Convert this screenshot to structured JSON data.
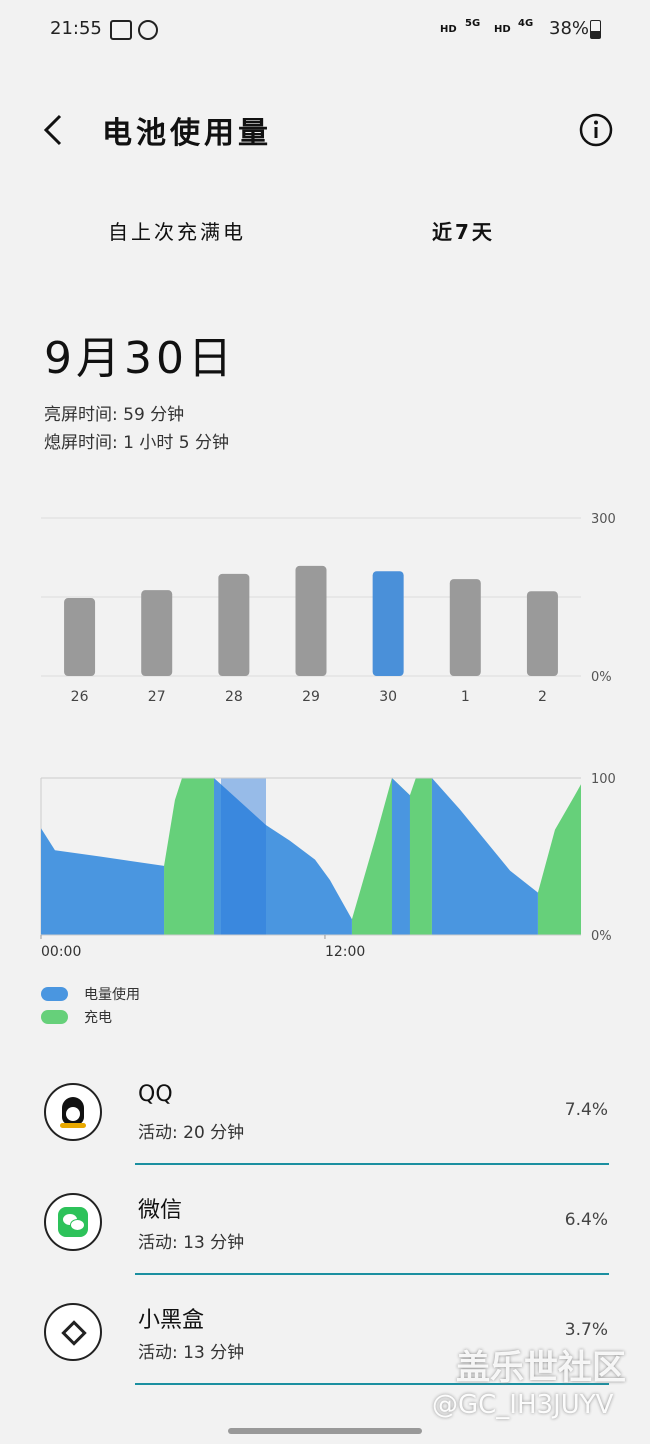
{
  "status_bar": {
    "time": "21:55",
    "network_1": "HD",
    "network_2": "5G",
    "network_3": "HD",
    "network_4": "4G",
    "battery": "38%"
  },
  "header": {
    "title": "电池使用量"
  },
  "tabs": [
    "自上次充满电",
    "近7天"
  ],
  "summary": {
    "date": "9月30日",
    "screen_on": "亮屏时间: 59 分钟",
    "screen_off": "熄屏时间: 1 小时 5 分钟"
  },
  "chart_data": [
    {
      "type": "bar",
      "categories": [
        "26",
        "27",
        "28",
        "29",
        "30",
        "1",
        "2"
      ],
      "values": [
        148,
        163,
        194,
        209,
        199,
        184,
        161
      ],
      "colors": [
        "#9a9a9a",
        "#9a9a9a",
        "#9a9a9a",
        "#9a9a9a",
        "#4a90d9",
        "#9a9a9a",
        "#9a9a9a"
      ],
      "ylim": [
        0,
        300
      ],
      "yticks": [
        {
          "value": 0,
          "label": "0%"
        },
        300
      ],
      "grid": true
    },
    {
      "type": "area",
      "x": [
        0,
        0.59,
        2.49,
        5.2,
        5.66,
        5.96,
        7.31,
        9.51,
        10.52,
        11.58,
        12.21,
        13.14,
        14.1,
        14.83,
        15.59,
        15.84,
        16.52,
        17.7,
        19.82,
        21.0,
        21.72,
        22.56,
        22.82
      ],
      "xlim": [
        0,
        22.82
      ],
      "xticks": [
        {
          "value": 0,
          "label": "00:00"
        },
        {
          "value": 12,
          "label": "12:00"
        }
      ],
      "ylim": [
        0,
        100
      ],
      "yticks": [
        {
          "value": 0,
          "label": "0%"
        },
        100
      ],
      "series": [
        {
          "name": "充电",
          "color": "#66d07a",
          "values": [
            null,
            null,
            null,
            44,
            86,
            100,
            100,
            null,
            null,
            null,
            null,
            10,
            60,
            100,
            89,
            100,
            100,
            null,
            null,
            27,
            67,
            89,
            96
          ]
        },
        {
          "name": "电量使用",
          "color": "#4a96e0",
          "values": [
            68,
            54,
            50,
            44,
            null,
            null,
            100,
            70,
            60,
            48,
            35,
            10,
            null,
            100,
            89,
            null,
            100,
            80,
            41,
            27,
            null,
            null,
            null
          ]
        }
      ]
    }
  ],
  "apps": [
    {
      "name": "QQ",
      "activity": "活动: 20 分钟",
      "percent": "7.4%"
    },
    {
      "name": "微信",
      "activity": "活动: 13 分钟",
      "percent": "6.4%"
    },
    {
      "name": "小黑盒",
      "activity": "活动: 13 分钟",
      "percent": "3.7%"
    }
  ],
  "watermark": {
    "title": "盖乐世社区",
    "user": "@GC_IH3JUYV"
  }
}
